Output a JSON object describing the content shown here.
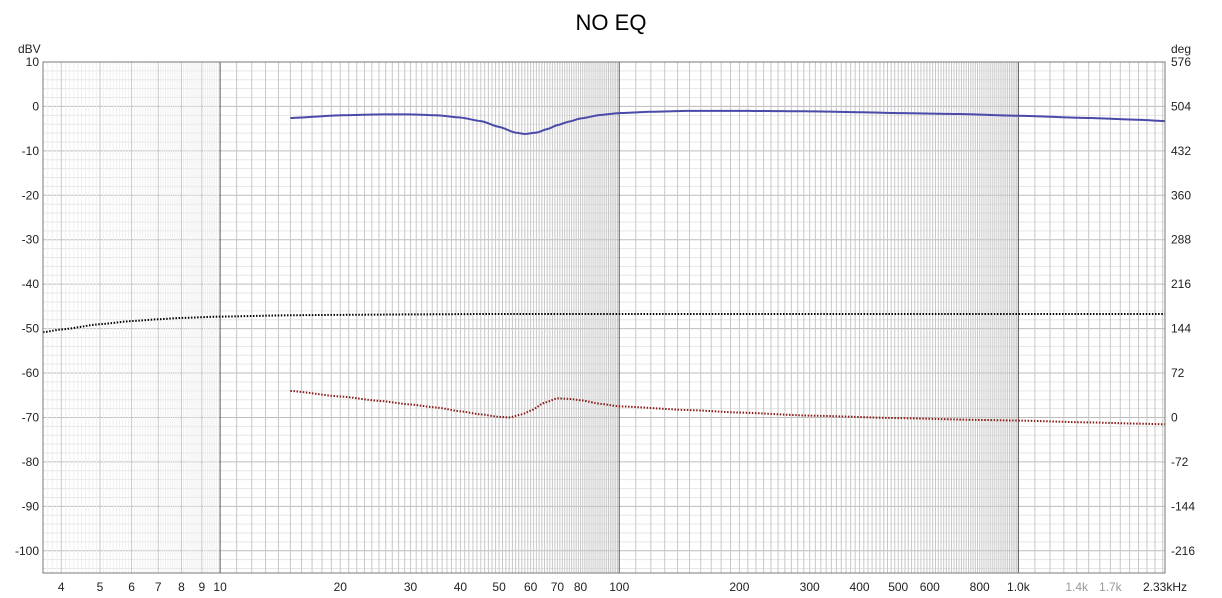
{
  "chart_data": {
    "type": "line",
    "title": "NO EQ",
    "xlabel": "",
    "ylabel": "dBV",
    "y2label": "deg",
    "x_scale": "log",
    "xlim": [
      3.6,
      2330
    ],
    "ylim": [
      -105,
      10
    ],
    "y2lim": [
      -252,
      576
    ],
    "grid": true,
    "x_ticks": [
      {
        "value": 4,
        "label": "4"
      },
      {
        "value": 5,
        "label": "5"
      },
      {
        "value": 6,
        "label": "6"
      },
      {
        "value": 7,
        "label": "7"
      },
      {
        "value": 8,
        "label": "8"
      },
      {
        "value": 9,
        "label": "9"
      },
      {
        "value": 10,
        "label": "10"
      },
      {
        "value": 20,
        "label": "20"
      },
      {
        "value": 30,
        "label": "30"
      },
      {
        "value": 40,
        "label": "40"
      },
      {
        "value": 50,
        "label": "50"
      },
      {
        "value": 60,
        "label": "60"
      },
      {
        "value": 70,
        "label": "70"
      },
      {
        "value": 80,
        "label": "80"
      },
      {
        "value": 100,
        "label": "100"
      },
      {
        "value": 200,
        "label": "200"
      },
      {
        "value": 300,
        "label": "300"
      },
      {
        "value": 400,
        "label": "400"
      },
      {
        "value": 500,
        "label": "500"
      },
      {
        "value": 600,
        "label": "600"
      },
      {
        "value": 800,
        "label": "800"
      },
      {
        "value": 1000,
        "label": "1.0k"
      },
      {
        "value": 1400,
        "label": "1.4k",
        "muted": true
      },
      {
        "value": 1700,
        "label": "1.7k",
        "muted": true
      },
      {
        "value": 2330,
        "label": "2.33kHz"
      }
    ],
    "y_ticks": [
      10,
      0,
      -10,
      -20,
      -30,
      -40,
      -50,
      -60,
      -70,
      -80,
      -90,
      -100
    ],
    "y2_ticks": [
      576,
      504,
      432,
      360,
      288,
      216,
      144,
      72,
      0,
      -72,
      -144,
      -216
    ],
    "series": [
      {
        "axis": "y",
        "color": "#4a4aa8",
        "style": "solid",
        "points": [
          [
            15,
            -2.6
          ],
          [
            20,
            -2.0
          ],
          [
            25,
            -1.8
          ],
          [
            30,
            -1.8
          ],
          [
            35,
            -2.0
          ],
          [
            40,
            -2.5
          ],
          [
            45,
            -3.3
          ],
          [
            50,
            -4.6
          ],
          [
            55,
            -5.9
          ],
          [
            58,
            -6.2
          ],
          [
            62,
            -5.9
          ],
          [
            66,
            -5.1
          ],
          [
            70,
            -4.2
          ],
          [
            75,
            -3.4
          ],
          [
            80,
            -2.7
          ],
          [
            90,
            -1.9
          ],
          [
            100,
            -1.5
          ],
          [
            120,
            -1.2
          ],
          [
            150,
            -1.0
          ],
          [
            200,
            -1.0
          ],
          [
            300,
            -1.1
          ],
          [
            400,
            -1.3
          ],
          [
            500,
            -1.5
          ],
          [
            700,
            -1.7
          ],
          [
            1000,
            -2.1
          ],
          [
            1500,
            -2.6
          ],
          [
            2000,
            -3.0
          ],
          [
            2330,
            -3.3
          ]
        ]
      },
      {
        "axis": "y",
        "color": "#000000",
        "style": "dotted",
        "points": [
          [
            3.6,
            -50.8
          ],
          [
            4,
            -50.2
          ],
          [
            5,
            -49.0
          ],
          [
            6,
            -48.3
          ],
          [
            7,
            -47.9
          ],
          [
            8,
            -47.6
          ],
          [
            10,
            -47.3
          ],
          [
            15,
            -47.0
          ],
          [
            20,
            -46.9
          ],
          [
            30,
            -46.8
          ],
          [
            50,
            -46.7
          ],
          [
            100,
            -46.7
          ],
          [
            200,
            -46.7
          ],
          [
            500,
            -46.7
          ],
          [
            1000,
            -46.7
          ],
          [
            2330,
            -46.7
          ]
        ]
      },
      {
        "axis": "y2",
        "color": "#8b1a1a",
        "style": "dotted",
        "points": [
          [
            15,
            43
          ],
          [
            20,
            34
          ],
          [
            25,
            27
          ],
          [
            30,
            21
          ],
          [
            35,
            16
          ],
          [
            40,
            10
          ],
          [
            45,
            5
          ],
          [
            50,
            1
          ],
          [
            53,
            0
          ],
          [
            57,
            5
          ],
          [
            60,
            11
          ],
          [
            65,
            24
          ],
          [
            70,
            31
          ],
          [
            75,
            30
          ],
          [
            80,
            28
          ],
          [
            90,
            22
          ],
          [
            100,
            18
          ],
          [
            150,
            12
          ],
          [
            200,
            8
          ],
          [
            300,
            3
          ],
          [
            500,
            -1
          ],
          [
            800,
            -4
          ],
          [
            1000,
            -5
          ],
          [
            1500,
            -8
          ],
          [
            2000,
            -10
          ],
          [
            2330,
            -11
          ]
        ]
      }
    ]
  }
}
